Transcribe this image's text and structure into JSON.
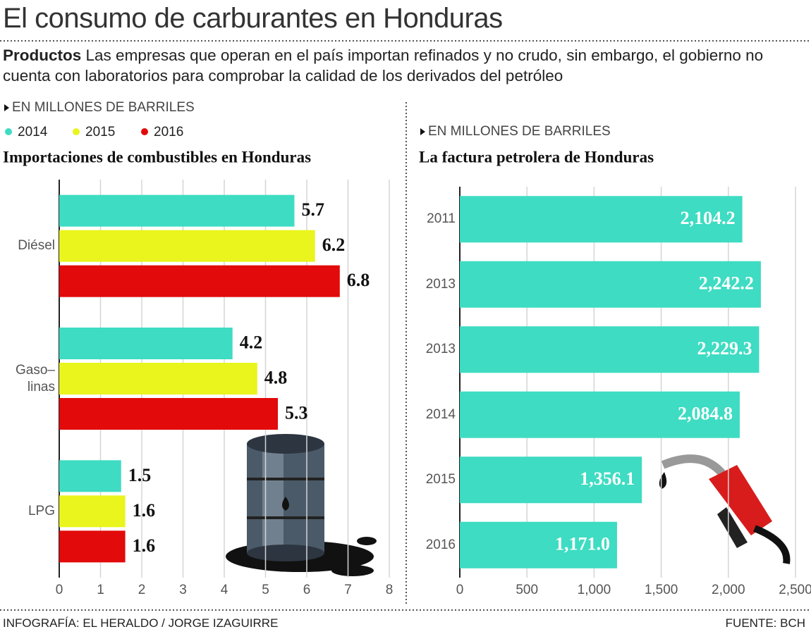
{
  "header": {
    "title": "El consumo de carburantes en Honduras",
    "lead": "Productos",
    "subtitle": "Las empresas que operan en el país importan refinados y no crudo, sin embargo, el gobierno no cuenta con laboratorios para comprobar la calidad de los derivados del petróleo"
  },
  "chart_data": [
    {
      "type": "bar",
      "orientation": "horizontal",
      "note": "EN MILLONES DE BARRILES",
      "title": "Importaciones de combustibles en Honduras",
      "categories": [
        "Diésel",
        "Gaso–\nlinas",
        "LPG"
      ],
      "series": [
        {
          "name": "2014",
          "color": "#3edcc2",
          "values": [
            5.7,
            4.2,
            1.5
          ]
        },
        {
          "name": "2015",
          "color": "#e9f51c",
          "values": [
            6.2,
            4.8,
            1.6
          ]
        },
        {
          "name": "2016",
          "color": "#e20a0a",
          "values": [
            6.8,
            5.3,
            1.6
          ]
        }
      ],
      "xlim": [
        0,
        8
      ],
      "xticks": [
        0,
        1,
        2,
        3,
        4,
        5,
        6,
        7,
        8
      ],
      "grid": true
    },
    {
      "type": "bar",
      "orientation": "horizontal",
      "note": "EN MILLONES DE BARRILES",
      "title": "La factura petrolera de Honduras",
      "categories": [
        "2011",
        "2013",
        "2013",
        "2014",
        "2015",
        "2016"
      ],
      "values": [
        2104.2,
        2242.2,
        2229.3,
        2084.8,
        1356.1,
        1171.0
      ],
      "value_labels": [
        "2,104.2",
        "2,242.2",
        "2,229.3",
        "2,084.8",
        "1,356.1",
        "1,171.0"
      ],
      "color": "#3edcc2",
      "xlim": [
        0,
        2500
      ],
      "xticks": [
        0,
        500,
        {
          "value": 1000,
          "label": "1,000"
        },
        {
          "value": 1500,
          "label": "1,500"
        },
        {
          "value": 2000,
          "label": "2,000"
        },
        {
          "value": 2500,
          "label": "2,500"
        }
      ],
      "grid": true
    }
  ],
  "footer": {
    "credit": "INFOGRAFÍA: EL HERALDO / JORGE IZAGUIRRE",
    "source": "FUENTE: BCH"
  }
}
